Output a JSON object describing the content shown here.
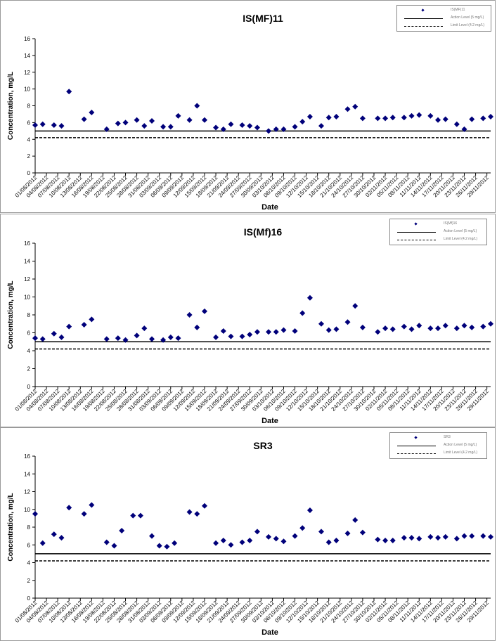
{
  "chart_data": [
    {
      "type": "scatter",
      "title": "IS(MF)11",
      "xlabel": "Date",
      "ylabel": "Concentration, mg/L",
      "ylim": [
        0,
        16
      ],
      "yticks": [
        0,
        2,
        4,
        6,
        8,
        10,
        12,
        14,
        16
      ],
      "x_tick_labels": [
        "01/08/2012",
        "04/08/2012",
        "07/08/2012",
        "10/08/2012",
        "13/08/2012",
        "16/08/2012",
        "19/08/2012",
        "22/08/2012",
        "25/08/2012",
        "28/08/2012",
        "31/08/2012",
        "03/09/2012",
        "06/09/2012",
        "09/09/2012",
        "12/09/2012",
        "15/09/2012",
        "18/09/2012",
        "21/09/2012",
        "24/09/2012",
        "27/09/2012",
        "30/09/2012",
        "03/10/2012",
        "06/10/2012",
        "09/10/2012",
        "12/10/2012",
        "15/10/2012",
        "18/10/2012",
        "21/10/2012",
        "24/10/2012",
        "27/10/2012",
        "30/10/2012",
        "02/11/2012",
        "05/11/2012",
        "08/11/2012",
        "11/11/2012",
        "14/11/2012",
        "17/11/2012",
        "20/11/2012",
        "23/11/2012",
        "26/11/2012",
        "29/11/2012"
      ],
      "x_range": [
        "01/08/2012",
        "30/11/2012"
      ],
      "series": [
        {
          "legend_text": "IS(MF)11",
          "color": "#00007a",
          "marker": "diamond",
          "x": [
            "01/08/2012",
            "03/08/2012",
            "06/08/2012",
            "08/08/2012",
            "10/08/2012",
            "14/08/2012",
            "16/08/2012",
            "20/08/2012",
            "23/08/2012",
            "25/08/2012",
            "28/08/2012",
            "30/08/2012",
            "01/09/2012",
            "04/09/2012",
            "06/09/2012",
            "08/09/2012",
            "11/09/2012",
            "13/09/2012",
            "15/09/2012",
            "18/09/2012",
            "20/09/2012",
            "22/09/2012",
            "25/09/2012",
            "27/09/2012",
            "29/09/2012",
            "02/10/2012",
            "04/10/2012",
            "06/10/2012",
            "09/10/2012",
            "11/10/2012",
            "13/10/2012",
            "16/10/2012",
            "18/10/2012",
            "20/10/2012",
            "23/10/2012",
            "25/10/2012",
            "27/10/2012",
            "31/10/2012",
            "02/11/2012",
            "04/11/2012",
            "07/11/2012",
            "09/11/2012",
            "11/11/2012",
            "14/11/2012",
            "16/11/2012",
            "18/11/2012",
            "21/11/2012",
            "23/11/2012",
            "25/11/2012",
            "28/11/2012",
            "30/11/2012"
          ],
          "y": [
            5.7,
            5.8,
            5.7,
            5.6,
            9.7,
            6.4,
            7.2,
            5.2,
            5.9,
            6.0,
            6.3,
            5.6,
            6.2,
            5.5,
            5.5,
            6.8,
            6.3,
            8.0,
            6.3,
            5.4,
            5.2,
            5.8,
            5.7,
            5.6,
            5.4,
            5.0,
            5.2,
            5.2,
            5.5,
            6.1,
            6.7,
            5.6,
            6.6,
            6.7,
            7.6,
            7.9,
            6.5,
            6.5,
            6.5,
            6.6,
            6.6,
            6.8,
            6.9,
            6.8,
            6.3,
            6.4,
            5.8,
            5.2,
            6.4,
            6.5,
            6.7
          ]
        }
      ],
      "reference_lines": [
        {
          "legend_text": "Action Level (5 mg/L)",
          "value": 5.0,
          "style": "solid"
        },
        {
          "legend_text": "Limit Level (4.2 mg/L)",
          "value": 4.2,
          "style": "dashed"
        }
      ],
      "legend": "top-right"
    },
    {
      "type": "scatter",
      "title": "IS(Mf)16",
      "xlabel": "Date",
      "ylabel": "Concentration, mg/L",
      "ylim": [
        0,
        16
      ],
      "yticks": [
        0,
        2,
        4,
        6,
        8,
        10,
        12,
        14,
        16
      ],
      "x_tick_labels": [
        "01/08/2012",
        "04/08/2012",
        "07/08/2012",
        "10/08/2012",
        "13/08/2012",
        "16/08/2012",
        "19/08/2012",
        "22/08/2012",
        "25/08/2012",
        "28/08/2012",
        "31/08/2012",
        "03/09/2012",
        "06/09/2012",
        "09/09/2012",
        "12/09/2012",
        "15/09/2012",
        "18/09/2012",
        "21/09/2012",
        "24/09/2012",
        "27/09/2012",
        "30/09/2012",
        "03/10/2012",
        "06/10/2012",
        "09/10/2012",
        "12/10/2012",
        "15/10/2012",
        "18/10/2012",
        "21/10/2012",
        "24/10/2012",
        "27/10/2012",
        "30/10/2012",
        "02/11/2012",
        "05/11/2012",
        "08/11/2012",
        "11/11/2012",
        "14/11/2012",
        "17/11/2012",
        "20/11/2012",
        "23/11/2012",
        "26/11/2012",
        "29/11/2012"
      ],
      "x_range": [
        "01/08/2012",
        "30/11/2012"
      ],
      "series": [
        {
          "legend_text": "IS(Mf)16",
          "color": "#00007a",
          "marker": "diamond",
          "x": [
            "01/08/2012",
            "03/08/2012",
            "06/08/2012",
            "08/08/2012",
            "10/08/2012",
            "14/08/2012",
            "16/08/2012",
            "20/08/2012",
            "23/08/2012",
            "25/08/2012",
            "28/08/2012",
            "30/08/2012",
            "01/09/2012",
            "04/09/2012",
            "06/09/2012",
            "08/09/2012",
            "11/09/2012",
            "13/09/2012",
            "15/09/2012",
            "18/09/2012",
            "20/09/2012",
            "22/09/2012",
            "25/09/2012",
            "27/09/2012",
            "29/09/2012",
            "02/10/2012",
            "04/10/2012",
            "06/10/2012",
            "09/10/2012",
            "11/10/2012",
            "13/10/2012",
            "16/10/2012",
            "18/10/2012",
            "20/10/2012",
            "23/10/2012",
            "25/10/2012",
            "27/10/2012",
            "31/10/2012",
            "02/11/2012",
            "04/11/2012",
            "07/11/2012",
            "09/11/2012",
            "11/11/2012",
            "14/11/2012",
            "16/11/2012",
            "18/11/2012",
            "21/11/2012",
            "23/11/2012",
            "25/11/2012",
            "28/11/2012",
            "30/11/2012"
          ],
          "y": [
            5.4,
            5.3,
            5.9,
            5.5,
            6.7,
            6.9,
            7.5,
            5.3,
            5.4,
            5.2,
            5.7,
            6.5,
            5.3,
            5.2,
            5.5,
            5.4,
            8.0,
            6.6,
            8.4,
            5.5,
            6.2,
            5.6,
            5.6,
            5.8,
            6.1,
            6.1,
            6.1,
            6.3,
            6.2,
            8.2,
            9.9,
            7.0,
            6.3,
            6.4,
            7.2,
            9.0,
            6.6,
            6.1,
            6.5,
            6.4,
            6.7,
            6.4,
            6.8,
            6.5,
            6.5,
            6.8,
            6.5,
            6.8,
            6.6,
            6.7,
            7.0
          ]
        }
      ],
      "reference_lines": [
        {
          "legend_text": "Action Level (5 mg/L)",
          "value": 5.0,
          "style": "solid"
        },
        {
          "legend_text": "Limit Level (4.2 mg/L)",
          "value": 4.2,
          "style": "dashed"
        }
      ],
      "legend": "top-right"
    },
    {
      "type": "scatter",
      "title": "SR3",
      "xlabel": "Date",
      "ylabel": "Concentration, mg/L",
      "ylim": [
        0,
        16
      ],
      "yticks": [
        0,
        2,
        4,
        6,
        8,
        10,
        12,
        14,
        16
      ],
      "x_tick_labels": [
        "01/08/2012",
        "04/08/2012",
        "07/08/2012",
        "10/08/2012",
        "13/08/2012",
        "16/08/2012",
        "19/08/2012",
        "22/08/2012",
        "25/08/2012",
        "28/08/2012",
        "31/08/2012",
        "03/09/2012",
        "06/09/2012",
        "09/09/2012",
        "12/09/2012",
        "15/09/2012",
        "18/09/2012",
        "21/09/2012",
        "24/09/2012",
        "27/09/2012",
        "30/09/2012",
        "03/10/2012",
        "06/10/2012",
        "09/10/2012",
        "12/10/2012",
        "15/10/2012",
        "18/10/2012",
        "21/10/2012",
        "24/10/2012",
        "27/10/2012",
        "30/10/2012",
        "02/11/2012",
        "05/11/2012",
        "08/11/2012",
        "11/11/2012",
        "14/11/2012",
        "17/11/2012",
        "20/11/2012",
        "23/11/2012",
        "26/11/2012",
        "29/11/2012"
      ],
      "x_range": [
        "01/08/2012",
        "30/11/2012"
      ],
      "series": [
        {
          "legend_text": "SR3",
          "color": "#00007a",
          "marker": "diamond",
          "x": [
            "01/08/2012",
            "03/08/2012",
            "06/08/2012",
            "08/08/2012",
            "10/08/2012",
            "14/08/2012",
            "16/08/2012",
            "20/08/2012",
            "22/08/2012",
            "24/08/2012",
            "27/08/2012",
            "29/08/2012",
            "01/09/2012",
            "03/09/2012",
            "05/09/2012",
            "07/09/2012",
            "11/09/2012",
            "13/09/2012",
            "15/09/2012",
            "18/09/2012",
            "20/09/2012",
            "22/09/2012",
            "25/09/2012",
            "27/09/2012",
            "29/09/2012",
            "02/10/2012",
            "04/10/2012",
            "06/10/2012",
            "09/10/2012",
            "11/10/2012",
            "13/10/2012",
            "16/10/2012",
            "18/10/2012",
            "20/10/2012",
            "23/10/2012",
            "25/10/2012",
            "27/10/2012",
            "31/10/2012",
            "02/11/2012",
            "04/11/2012",
            "07/11/2012",
            "09/11/2012",
            "11/11/2012",
            "14/11/2012",
            "16/11/2012",
            "18/11/2012",
            "21/11/2012",
            "23/11/2012",
            "25/11/2012",
            "28/11/2012",
            "30/11/2012"
          ],
          "y": [
            9.5,
            6.2,
            7.2,
            6.8,
            10.2,
            9.5,
            10.5,
            6.3,
            5.9,
            7.6,
            9.3,
            9.3,
            7.0,
            5.9,
            5.8,
            6.2,
            9.7,
            9.5,
            10.4,
            6.2,
            6.5,
            6.0,
            6.3,
            6.5,
            7.5,
            6.9,
            6.7,
            6.4,
            7.0,
            7.9,
            9.9,
            7.5,
            6.3,
            6.5,
            7.3,
            8.8,
            7.4,
            6.6,
            6.5,
            6.5,
            6.8,
            6.8,
            6.7,
            6.9,
            6.8,
            6.9,
            6.7,
            7.0,
            7.0,
            7.0,
            6.9
          ]
        }
      ],
      "reference_lines": [
        {
          "legend_text": "Action Level (5 mg/L)",
          "value": 5.0,
          "style": "solid"
        },
        {
          "legend_text": "Limit Level (4.2 mg/L)",
          "value": 4.2,
          "style": "dashed"
        }
      ],
      "legend": "top-right"
    }
  ]
}
